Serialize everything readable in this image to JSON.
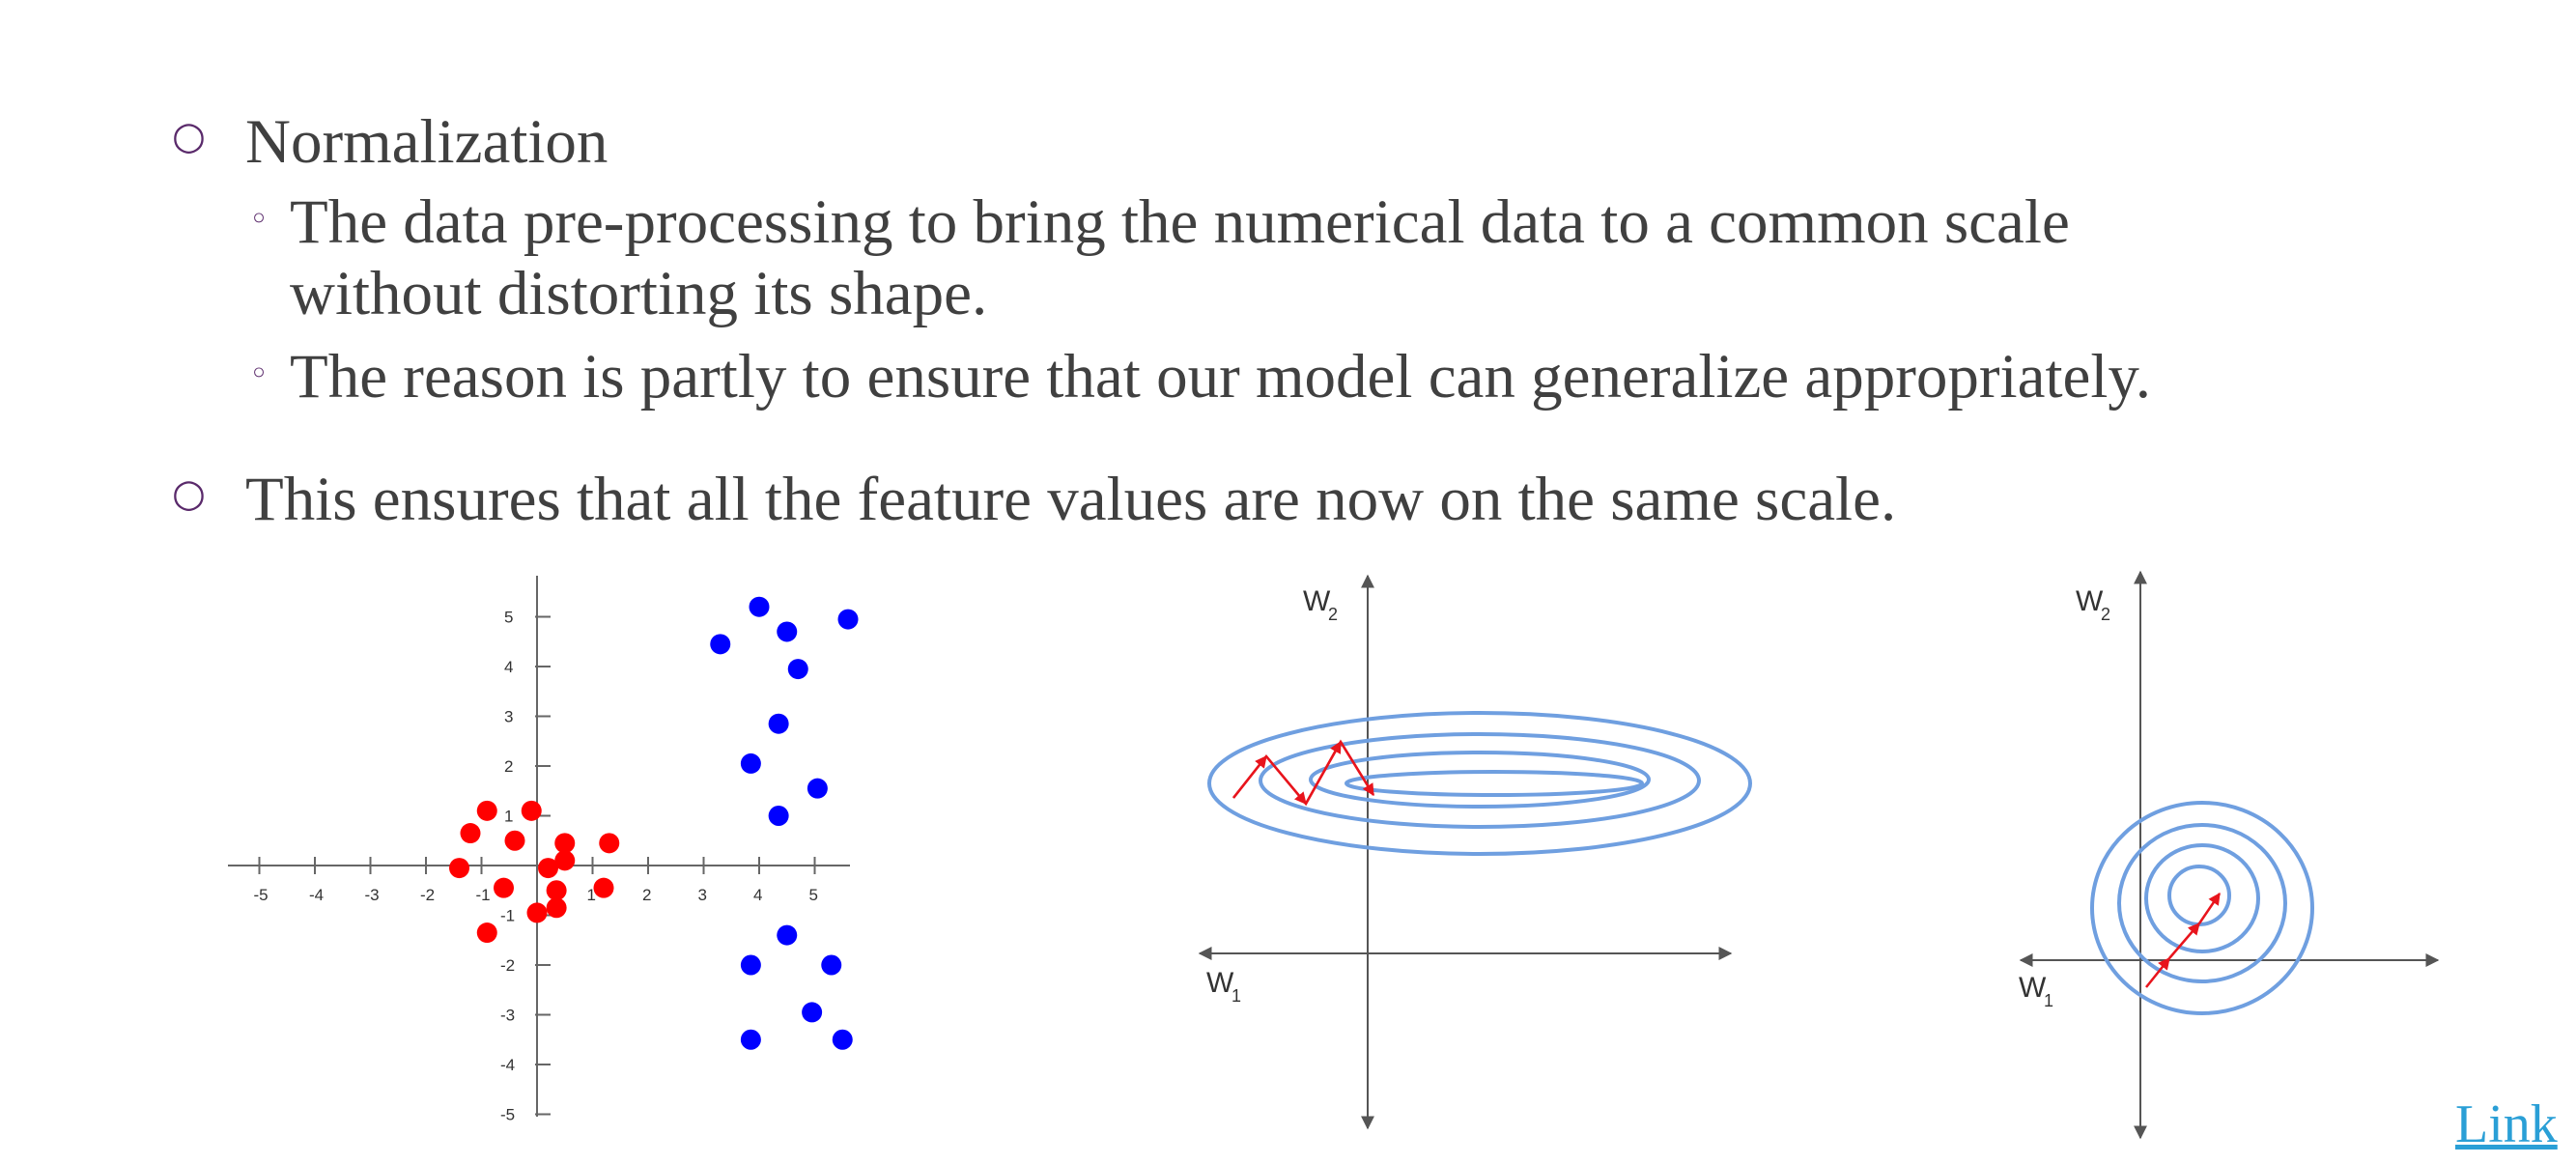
{
  "bullets": [
    {
      "text": "Normalization"
    },
    {
      "text": "This ensures that all the feature values are now on the same scale."
    }
  ],
  "sub_bullets": [
    {
      "line1": "The data pre-processing to bring the numerical data to a common scale",
      "line2": "without distorting its shape."
    },
    {
      "line1": "The reason is partly to ensure that our model can generalize appropriately."
    }
  ],
  "link_label": "Link",
  "icons": {
    "bullet": "hollow-circle-bullet",
    "sub_bullet": "small-hollow-circle-bullet"
  },
  "colors": {
    "text": "#404040",
    "bullet": "#5a2a6b",
    "red_points": "#ff0000",
    "blue_points": "#0000ff",
    "contours": "#6f9fe0",
    "arrows": "#e8141c",
    "link": "#2a9fd6"
  },
  "chart_data": [
    {
      "type": "scatter",
      "title": "",
      "x_ticks": [
        "-5",
        "-4",
        "-3",
        "-2",
        "-1",
        "1",
        "2",
        "3",
        "4",
        "5"
      ],
      "y_ticks": [
        "5",
        "4",
        "3",
        "2",
        "1",
        "-1",
        "-2",
        "-3",
        "-4",
        "-5"
      ],
      "xlim": [
        -5.5,
        5.7
      ],
      "ylim": [
        -5.0,
        5.6
      ],
      "series": [
        {
          "color": "#ff0000",
          "points": [
            [
              -0.9,
              1.1
            ],
            [
              -0.1,
              1.1
            ],
            [
              -1.2,
              0.65
            ],
            [
              -0.4,
              0.5
            ],
            [
              0.5,
              0.45
            ],
            [
              1.3,
              0.45
            ],
            [
              -1.4,
              -0.05
            ],
            [
              0.2,
              -0.05
            ],
            [
              0.5,
              0.1
            ],
            [
              -0.6,
              -0.45
            ],
            [
              0.35,
              -0.5
            ],
            [
              1.2,
              -0.45
            ],
            [
              0.35,
              -0.85
            ],
            [
              0,
              -0.95
            ],
            [
              -0.9,
              -1.35
            ]
          ]
        },
        {
          "color": "#0000ff",
          "points": [
            [
              4,
              5.2
            ],
            [
              4.5,
              4.7
            ],
            [
              5.6,
              4.95
            ],
            [
              3.3,
              4.45
            ],
            [
              4.7,
              3.95
            ],
            [
              4.35,
              2.85
            ],
            [
              3.85,
              2.05
            ],
            [
              5.05,
              1.55
            ],
            [
              4.35,
              1.0
            ],
            [
              4.5,
              -1.4
            ],
            [
              3.85,
              -2.0
            ],
            [
              5.3,
              -2.0
            ],
            [
              4.95,
              -2.95
            ],
            [
              3.85,
              -3.5
            ],
            [
              5.5,
              -3.5
            ]
          ]
        }
      ]
    }
  ],
  "contour_plots": [
    {
      "y_axis": "W",
      "y_sub": "2",
      "x_axis": "W",
      "x_sub": "1",
      "shape": "elongated-ellipses"
    },
    {
      "y_axis": "W",
      "y_sub": "2",
      "x_axis": "W",
      "x_sub": "1",
      "shape": "concentric-circles"
    }
  ]
}
